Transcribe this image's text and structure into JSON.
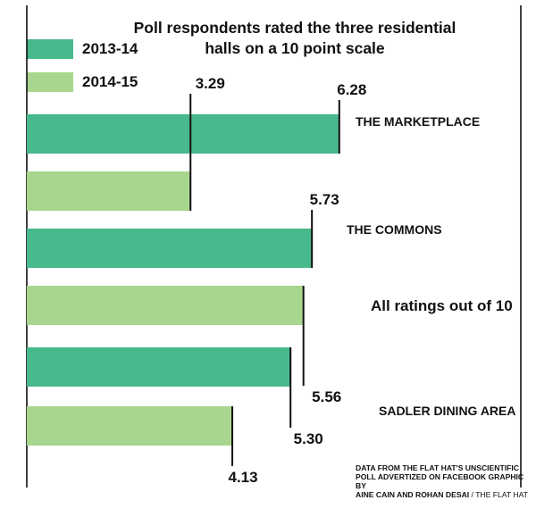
{
  "title_line1": "Poll respondents rated the three residential",
  "title_line2": "halls on a 10 point scale",
  "note": "All ratings out of 10",
  "source": {
    "line1": "DATA FROM THE FLAT HAT'S UNSCIENTIFIC",
    "line2": "POLL ADVERTIZED ON FACEBOOK GRAPHIC BY",
    "line3_bold": "AINE CAIN AND ROHAN DESAI",
    "line3_sep": " / ",
    "line3_credit": "THE FLAT HAT"
  },
  "colors": {
    "2013-14": "#47b98c",
    "2014-15": "#a8d68e"
  },
  "chart_data": {
    "type": "bar",
    "orientation": "horizontal",
    "categories": [
      "THE MARKETPLACE",
      "THE COMMONS",
      "SADLER DINING AREA"
    ],
    "series": [
      {
        "name": "2013-14",
        "values": [
          6.28,
          5.73,
          5.3
        ],
        "labels": [
          "6.28",
          "5.73",
          "5.30"
        ]
      },
      {
        "name": "2014-15",
        "values": [
          3.29,
          5.56,
          4.13
        ],
        "labels": [
          "3.29",
          "5.56",
          "4.13"
        ]
      }
    ],
    "scale_max": 10,
    "legend_position": "top-left",
    "grid": false
  }
}
